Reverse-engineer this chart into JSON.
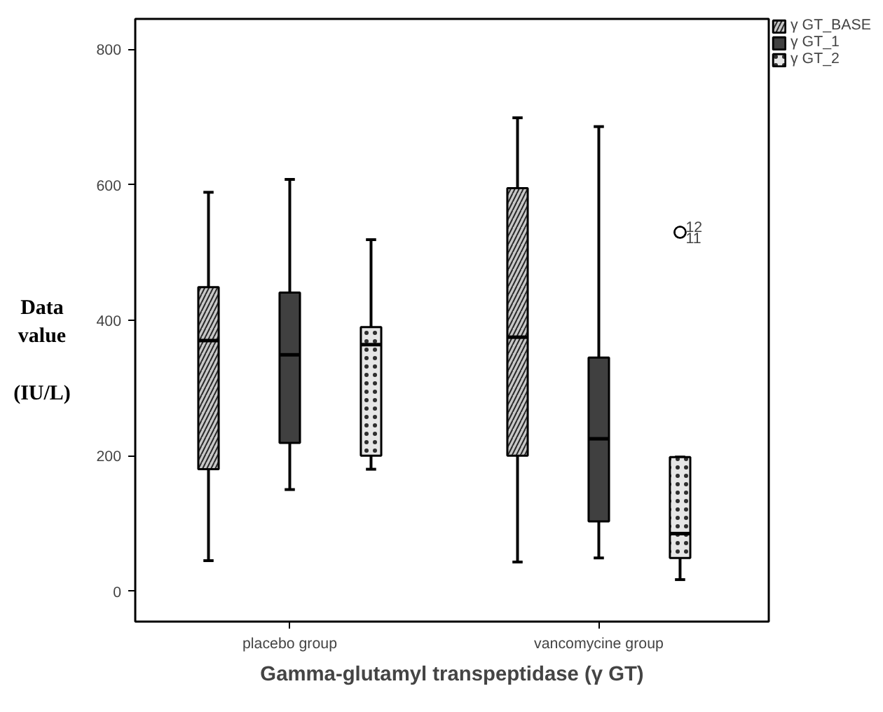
{
  "chart_data": {
    "type": "box",
    "xlabel": "Gamma-glutamyl transpeptidase (γ GT)",
    "ylabel": "Data value (IU/L)",
    "categories": [
      "placebo group",
      "vancomycine group"
    ],
    "ylim": [
      -45,
      845
    ],
    "yticks": [
      0,
      200,
      400,
      600,
      800
    ],
    "grid": false,
    "legend": "top right",
    "series": [
      {
        "name": "γ GT_BASE",
        "color": "#c8c8c8",
        "boxes": [
          {
            "low": 45,
            "q1": 180,
            "median": 370,
            "q3": 449,
            "high": 589
          },
          {
            "low": 43,
            "q1": 200,
            "median": 375,
            "q3": 595,
            "high": 699
          }
        ]
      },
      {
        "name": "γ GT_1",
        "color": "#404040",
        "boxes": [
          {
            "low": 150,
            "q1": 219,
            "median": 349,
            "q3": 441,
            "high": 608
          },
          {
            "low": 49,
            "q1": 103,
            "median": 225,
            "q3": 345,
            "high": 686
          }
        ]
      },
      {
        "name": "γ GT_2",
        "color": "#e6e6e6",
        "boxes": [
          {
            "low": 180,
            "q1": 200,
            "median": 364,
            "q3": 390,
            "high": 519
          },
          {
            "low": 17,
            "q1": 49,
            "median": 85,
            "q3": 198,
            "high": 198,
            "outliers": [
              530,
              530
            ]
          }
        ]
      }
    ],
    "annotations": [
      "12",
      "11"
    ]
  }
}
